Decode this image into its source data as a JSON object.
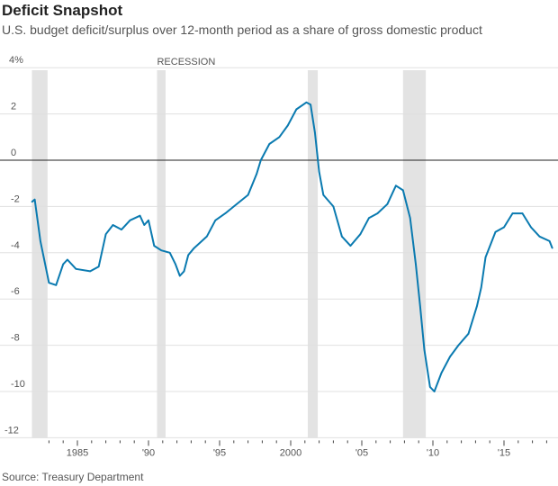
{
  "header": {
    "title": "Deficit Snapshot",
    "subtitle": "U.S. budget deficit/surplus over 12-month period as a share of gross domestic product"
  },
  "footer": {
    "source": "Source: Treasury Department"
  },
  "chart_data": {
    "type": "line",
    "title": "Deficit Snapshot",
    "xlabel": "",
    "ylabel": "",
    "xlim": [
      1981.8,
      2018.6
    ],
    "ylim": [
      -12,
      4
    ],
    "grid": true,
    "y_ticks": [
      4,
      2,
      0,
      -2,
      -4,
      -6,
      -8,
      -10,
      -12
    ],
    "y_tick_labels": [
      "4%",
      "2",
      "0",
      "-2",
      "-4",
      "-6",
      "-8",
      "-10",
      "-12"
    ],
    "x_ticks": [
      1985,
      1990,
      1995,
      2000,
      2005,
      2010,
      2015
    ],
    "x_tick_labels": [
      "1985",
      "'90",
      "'95",
      "2000",
      "'05",
      "'10",
      "'15"
    ],
    "recession_label": "RECESSION",
    "recessions": [
      [
        1981.8,
        1982.9
      ],
      [
        1990.6,
        1991.2
      ],
      [
        2001.2,
        2001.9
      ],
      [
        2007.9,
        2009.5
      ]
    ],
    "series": [
      {
        "name": "Deficit/surplus % of GDP",
        "color": "#0a7ab0",
        "x": [
          1981.8,
          1982.0,
          1982.4,
          1983.0,
          1983.5,
          1984.0,
          1984.3,
          1984.9,
          1985.9,
          1986.5,
          1987.0,
          1987.5,
          1988.1,
          1988.7,
          1989.4,
          1989.7,
          1990.0,
          1990.4,
          1990.9,
          1991.5,
          1991.9,
          1992.2,
          1992.5,
          1992.8,
          1993.2,
          1994.1,
          1994.7,
          1995.4,
          1996.0,
          1997.0,
          1997.6,
          1997.9,
          1998.5,
          1999.2,
          1999.8,
          2000.4,
          2001.1,
          2001.4,
          2001.7,
          2002.0,
          2002.3,
          2003.0,
          2003.6,
          2004.2,
          2004.9,
          2005.5,
          2006.1,
          2006.8,
          2007.4,
          2007.9,
          2008.4,
          2008.8,
          2009.1,
          2009.4,
          2009.8,
          2010.1,
          2010.6,
          2011.2,
          2011.8,
          2012.5,
          2013.1,
          2013.4,
          2013.7,
          2014.4,
          2015.0,
          2015.6,
          2016.3,
          2016.9,
          2017.5,
          2018.2,
          2018.4
        ],
        "y": [
          -1.8,
          -1.7,
          -3.5,
          -5.3,
          -5.4,
          -4.5,
          -4.3,
          -4.7,
          -4.8,
          -4.6,
          -3.2,
          -2.8,
          -3.0,
          -2.6,
          -2.4,
          -2.8,
          -2.6,
          -3.7,
          -3.9,
          -4.0,
          -4.5,
          -5.0,
          -4.8,
          -4.1,
          -3.8,
          -3.3,
          -2.6,
          -2.3,
          -2.0,
          -1.5,
          -0.6,
          0.0,
          0.7,
          1.0,
          1.5,
          2.2,
          2.5,
          2.4,
          1.2,
          -0.5,
          -1.5,
          -2.0,
          -3.3,
          -3.7,
          -3.2,
          -2.5,
          -2.3,
          -1.9,
          -1.1,
          -1.3,
          -2.5,
          -4.5,
          -6.3,
          -8.2,
          -9.8,
          -10.0,
          -9.2,
          -8.5,
          -8.0,
          -7.5,
          -6.3,
          -5.5,
          -4.2,
          -3.1,
          -2.9,
          -2.3,
          -2.3,
          -2.9,
          -3.3,
          -3.5,
          -3.8
        ]
      }
    ]
  }
}
